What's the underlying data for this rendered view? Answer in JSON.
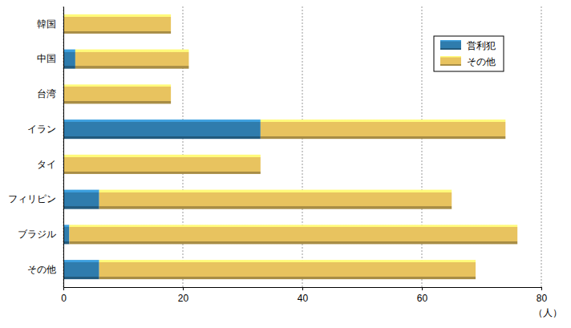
{
  "chart_data": {
    "type": "bar",
    "orientation": "horizontal",
    "stacked": true,
    "grid": true,
    "legend": "top-right",
    "categories": [
      "韓国",
      "中国",
      "台湾",
      "イラン",
      "タイ",
      "フィリピン",
      "ブラジル",
      "その他"
    ],
    "series": [
      {
        "name": "営利犯",
        "color": "#2f7cad",
        "values": [
          0,
          2,
          0,
          33,
          0,
          6,
          1,
          6
        ]
      },
      {
        "name": "その他",
        "color": "#e8c35f",
        "values": [
          18,
          19,
          18,
          41,
          33,
          59,
          75,
          63
        ]
      }
    ],
    "xlim": [
      0,
      80
    ],
    "xticks": [
      0,
      20,
      40,
      60,
      80
    ],
    "x_label": "（人）"
  }
}
